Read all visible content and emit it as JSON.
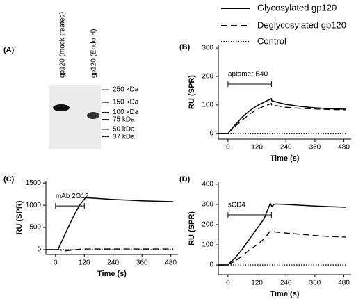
{
  "chart_data": [
    {
      "type": "gel",
      "panel_label": "(A)",
      "lanes": [
        "gp120 (mock treated)",
        "gp120 (Endo H)"
      ],
      "log_scale": true,
      "ylim": [
        22,
        305
      ],
      "yticks": [
        {
          "value": 250,
          "label": "250 kDa"
        },
        {
          "value": 150,
          "label": "150 kDa"
        },
        {
          "value": 100,
          "label": "100 kDa"
        },
        {
          "value": 75,
          "label": "75 kDa"
        },
        {
          "value": 50,
          "label": "50 kDa"
        },
        {
          "value": 37,
          "label": "37 kDa"
        }
      ]
    },
    {
      "type": "line",
      "panel_label": "(B)",
      "xlabel": "Time (s)",
      "ylabel": "RU (SPR)",
      "x": [
        -40,
        0,
        30,
        60,
        90,
        120,
        150,
        180,
        181,
        210,
        240,
        300,
        360,
        420,
        490
      ],
      "series": [
        {
          "name": "Glycosylated gp120",
          "color": "#000000",
          "dash": "solid",
          "values": [
            0,
            0,
            30,
            58,
            80,
            97,
            110,
            122,
            115,
            108,
            102,
            95,
            90,
            87,
            85
          ]
        },
        {
          "name": "Deglycosylated gp120",
          "color": "#000000",
          "dash": "dashed",
          "values": [
            0,
            0,
            25,
            48,
            68,
            84,
            96,
            105,
            100,
            96,
            92,
            88,
            86,
            84,
            83
          ]
        },
        {
          "name": "Control",
          "color": "#000000",
          "dash": "dotted",
          "values": [
            0,
            0,
            0,
            0,
            0,
            0,
            0,
            0,
            0,
            0,
            0,
            0,
            0,
            0,
            0
          ]
        }
      ],
      "annotation": {
        "text": "aptamer B40",
        "x": [
          0,
          180
        ],
        "y": 173
      },
      "xlim": [
        -40,
        510
      ],
      "xticks": [
        0,
        120,
        240,
        360,
        480
      ],
      "ylim": [
        -20,
        310
      ],
      "yticks": [
        0,
        100,
        200,
        300
      ]
    },
    {
      "type": "line",
      "panel_label": "(C)",
      "xlabel": "Time (s)",
      "ylabel": "RU (SPR)",
      "x": [
        -40,
        0,
        10,
        40,
        70,
        100,
        125,
        140,
        180,
        240,
        300,
        360,
        420,
        490
      ],
      "series": [
        {
          "color": "#000000",
          "dash": "solid",
          "values": [
            0,
            0,
            0,
            350,
            700,
            1000,
            1170,
            1165,
            1150,
            1130,
            1115,
            1100,
            1090,
            1080
          ]
        },
        {
          "color": "#000000",
          "dash": "dashed",
          "values": [
            0,
            0,
            0,
            -30,
            -10,
            10,
            15,
            15,
            15,
            15,
            15,
            15,
            15,
            15
          ]
        },
        {
          "color": "#000000",
          "dash": "dotted",
          "values": [
            0,
            0,
            0,
            0,
            0,
            0,
            0,
            0,
            0,
            0,
            0,
            0,
            0,
            0
          ]
        }
      ],
      "annotation": {
        "text": "mAb 2G12",
        "x": [
          0,
          120
        ],
        "y": 984
      },
      "xlim": [
        -40,
        510
      ],
      "xticks": [
        0,
        120,
        240,
        360,
        480
      ],
      "ylim": [
        -110,
        1550
      ],
      "yticks": [
        0,
        500,
        1000,
        1500
      ]
    },
    {
      "type": "line",
      "panel_label": "(D)",
      "xlabel": "Time (s)",
      "ylabel": "RU (SPR)",
      "x": [
        -40,
        0,
        5,
        30,
        60,
        90,
        120,
        150,
        175,
        182,
        190,
        200,
        240,
        300,
        360,
        420,
        490
      ],
      "series": [
        {
          "color": "#000000",
          "dash": "solid",
          "values": [
            0,
            0,
            8,
            35,
            80,
            130,
            180,
            230,
            305,
            290,
            300,
            302,
            300,
            296,
            292,
            289,
            286
          ]
        },
        {
          "color": "#000000",
          "dash": "dashed",
          "values": [
            0,
            0,
            5,
            20,
            45,
            75,
            100,
            130,
            168,
            165,
            165,
            163,
            158,
            152,
            146,
            141,
            138
          ]
        },
        {
          "color": "#000000",
          "dash": "dotted",
          "values": [
            0,
            0,
            0,
            0,
            0,
            0,
            0,
            0,
            0,
            0,
            0,
            0,
            0,
            0,
            0,
            0,
            0
          ]
        }
      ],
      "annotation": {
        "text": "sCD4",
        "x": [
          0,
          180
        ],
        "y": 248
      },
      "xlim": [
        -40,
        510
      ],
      "xticks": [
        0,
        120,
        240,
        360,
        480
      ],
      "ylim": [
        -48,
        410
      ],
      "yticks": [
        0,
        100,
        200,
        300,
        400
      ]
    }
  ]
}
